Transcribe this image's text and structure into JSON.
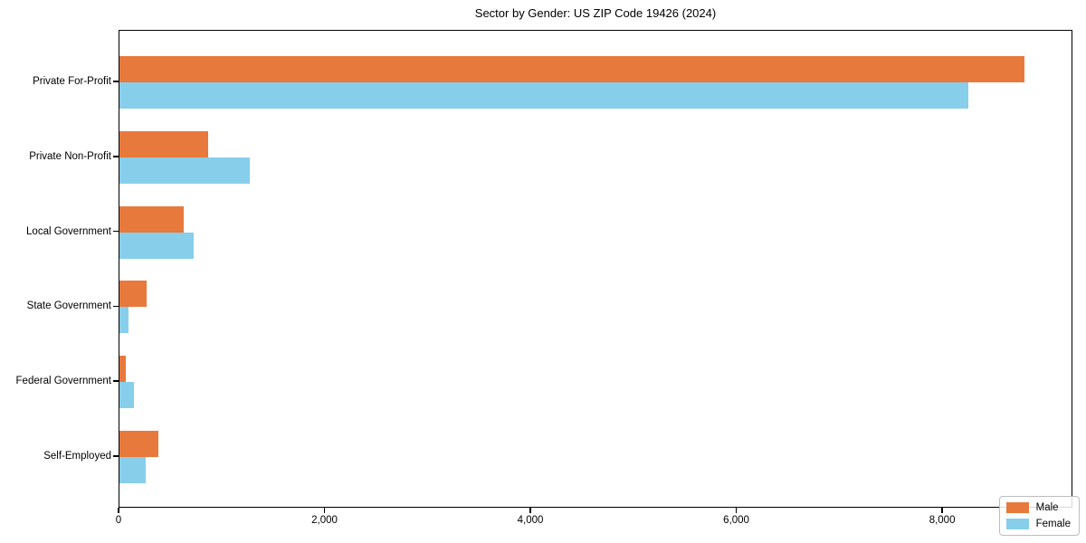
{
  "figure": {
    "title": "Sector by Gender: US ZIP Code 19426 (2024)"
  },
  "chart_data": {
    "type": "bar",
    "orientation": "horizontal",
    "title": "Sector by Gender: US ZIP Code 19426 (2024)",
    "categories": [
      "Private For-Profit",
      "Private Non-Profit",
      "Local Government",
      "State Government",
      "Federal Government",
      "Self-Employed"
    ],
    "series": [
      {
        "name": "Male",
        "color": "#E8793C",
        "values": [
          8810,
          860,
          625,
          265,
          60,
          380
        ]
      },
      {
        "name": "Female",
        "color": "#87CEEB",
        "values": [
          8260,
          1265,
          720,
          90,
          140,
          255
        ]
      }
    ],
    "xlabel": "",
    "ylabel": "",
    "xlim": [
      0,
      9265
    ],
    "xticks": [
      0,
      2000,
      4000,
      6000,
      8000
    ],
    "xtick_labels": [
      "0",
      "2,000",
      "4,000",
      "6,000",
      "8,000"
    ],
    "grid": false,
    "legend_position": "lower right",
    "legend_entries": [
      "Male",
      "Female"
    ]
  }
}
